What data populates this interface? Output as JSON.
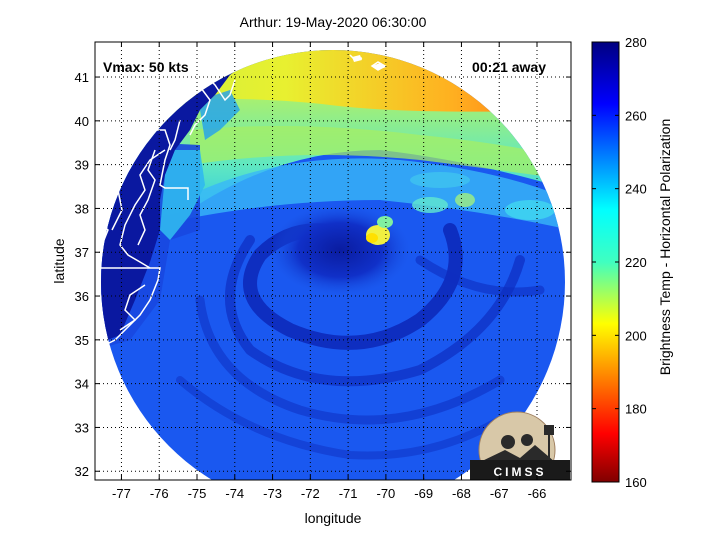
{
  "title": "Arthur: 19-May-2020 06:30:00",
  "annotations": {
    "vmax": "Vmax: 50 kts",
    "time_away": "00:21 away"
  },
  "axes": {
    "xlabel": "longitude",
    "ylabel": "latitude",
    "xlim": [
      -77.7,
      -65.1
    ],
    "ylim": [
      31.8,
      41.8
    ],
    "xticks": [
      -77,
      -76,
      -75,
      -74,
      -73,
      -72,
      -71,
      -70,
      -69,
      -68,
      -67,
      -66
    ],
    "yticks": [
      32,
      33,
      34,
      35,
      36,
      37,
      38,
      39,
      40,
      41
    ],
    "grid": true
  },
  "colorbar": {
    "label": "Brightness Temp - Horizontal Polarization",
    "min": 160,
    "max": 280,
    "ticks": [
      160,
      180,
      200,
      220,
      240,
      260,
      280
    ],
    "colormap": "jet"
  },
  "swath": {
    "center_lon": -71.2,
    "center_lat": 36.4,
    "storm_center_lon": -71.0,
    "storm_center_lat": 37.0
  },
  "logo": {
    "text": "CIMSS"
  },
  "colors": {
    "land_background": "#0a1aa8",
    "coastline": "#ffffff",
    "ocean_warm": "#1040e0",
    "dry_air_yellow": "#ffee20",
    "northern_orange": "#ff7a10"
  }
}
